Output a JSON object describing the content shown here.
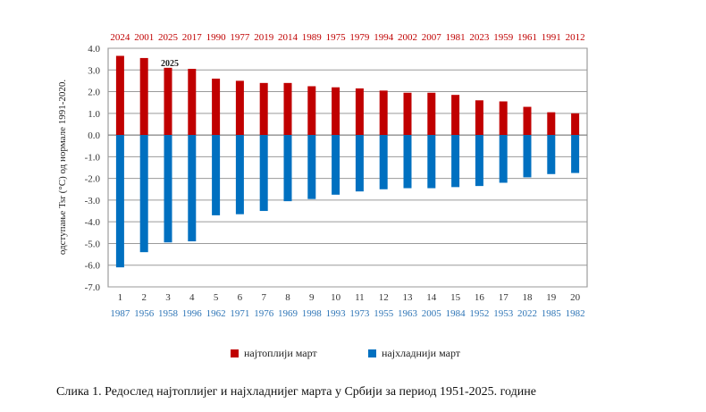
{
  "chart_data": {
    "type": "bar",
    "ylabel": "одступање Tsr (°C)  од  нормале 1991-2020.",
    "ylim": [
      -7.0,
      4.0
    ],
    "ytick_labels": [
      "4.0",
      "3.0",
      "2.0",
      "1.0",
      "0.0",
      "-1.0",
      "-2.0",
      "-3.0",
      "-4.0",
      "-5.0",
      "-6.0",
      "-7.0"
    ],
    "ranks": [
      "1",
      "2",
      "3",
      "4",
      "5",
      "6",
      "7",
      "8",
      "9",
      "10",
      "11",
      "12",
      "13",
      "14",
      "15",
      "16",
      "17",
      "18",
      "19",
      "20"
    ],
    "series": [
      {
        "name": "најтоплији март",
        "color": "#c00000",
        "years": [
          "2024",
          "2001",
          "2025",
          "2017",
          "1990",
          "1977",
          "2019",
          "2014",
          "1989",
          "1975",
          "1979",
          "1994",
          "2002",
          "2007",
          "1981",
          "2023",
          "1959",
          "1961",
          "1991",
          "2012"
        ],
        "values": [
          3.65,
          3.55,
          3.1,
          3.05,
          2.6,
          2.5,
          2.4,
          2.4,
          2.25,
          2.2,
          2.15,
          2.05,
          1.95,
          1.95,
          1.85,
          1.6,
          1.55,
          1.3,
          1.05,
          1.0
        ]
      },
      {
        "name": "најхладнији март",
        "color": "#0070c0",
        "years": [
          "1987",
          "1956",
          "1958",
          "1996",
          "1962",
          "1971",
          "1976",
          "1969",
          "1998",
          "1993",
          "1973",
          "1955",
          "1963",
          "2005",
          "1984",
          "1952",
          "1953",
          "2022",
          "1985",
          "1982"
        ],
        "values": [
          -6.1,
          -5.4,
          -4.95,
          -4.9,
          -3.7,
          -3.65,
          -3.5,
          -3.05,
          -2.95,
          -2.75,
          -2.6,
          -2.5,
          -2.45,
          -2.45,
          -2.4,
          -2.35,
          -2.2,
          -1.95,
          -1.8,
          -1.75
        ]
      }
    ],
    "annotation": {
      "label": "2025",
      "rank_index": 2
    }
  },
  "legend": {
    "warm_label": "најтоплији март",
    "cold_label": "најхладнији март"
  },
  "caption": "Слика 1. Редослед најтоплијег и најхладнијег марта у Србији за период 1951-2025. године"
}
